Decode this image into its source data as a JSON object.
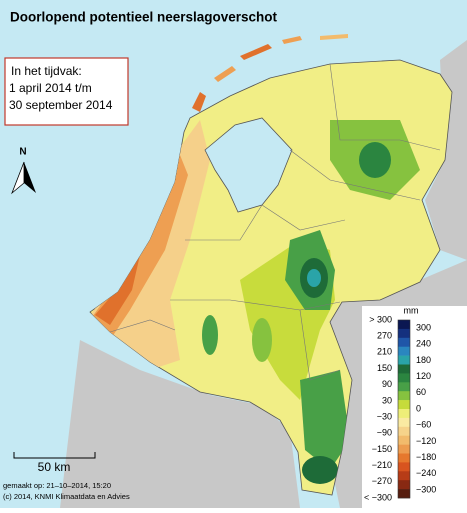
{
  "title": "Doorlopend potentieel neerslagoverschot",
  "info_box": {
    "lines": [
      "In het tijdvak:",
      "1 april 2014 t/m",
      "30 september 2014"
    ]
  },
  "north_label": "N",
  "scale_label": "50 km",
  "footer": {
    "lines": [
      "gemaakt op: 21–10–2014, 15:20",
      "(c) 2014, KNMI Klimaatdata en Advies"
    ]
  },
  "legend": {
    "unit": "mm",
    "left_labels": [
      "> 300",
      "270",
      "210",
      "150",
      "90",
      "30",
      "−30",
      "−90",
      "−150",
      "−210",
      "−270",
      "< −300"
    ],
    "right_labels": [
      "300",
      "240",
      "180",
      "120",
      "60",
      "0",
      "−60",
      "−120",
      "−180",
      "−240",
      "−300"
    ],
    "colors": [
      "#0b1752",
      "#14307e",
      "#1f56a8",
      "#2a86bf",
      "#2aa4a8",
      "#1e6b38",
      "#2b8540",
      "#48a047",
      "#86c23f",
      "#c6db3b",
      "#eeee78",
      "#faeaa2",
      "#f6d38a",
      "#f2bb6c",
      "#ed9c4f",
      "#e6782d",
      "#d8541f",
      "#b73c17",
      "#882912",
      "#561d0f"
    ]
  }
}
